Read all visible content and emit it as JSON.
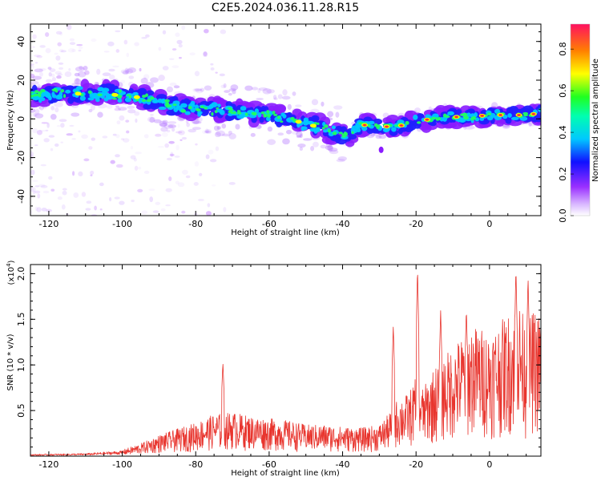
{
  "figure": {
    "title": "C2E5.2024.036.11.28.R15"
  },
  "chart_data": [
    {
      "type": "heatmap",
      "xlabel": "Height of straight line (km)",
      "ylabel": "Frequency (Hz)",
      "xlim": [
        -125,
        14
      ],
      "ylim": [
        -50,
        49
      ],
      "xticks": [
        -120,
        -100,
        -80,
        -60,
        -40,
        -20,
        0
      ],
      "yticks": [
        -40,
        -20,
        0,
        20,
        40
      ],
      "colorbar": {
        "label": "Normalized spectral amplitude",
        "range": [
          0,
          0.92
        ],
        "ticks": [
          0.0,
          0.2,
          0.4,
          0.6,
          0.8
        ],
        "colors": [
          "#ffffff",
          "#c8a0ff",
          "#8000ff",
          "#0000ff",
          "#00e0ff",
          "#00ff60",
          "#ffff00",
          "#ff8000",
          "#ff2050"
        ]
      },
      "ridge": {
        "x": [
          -125,
          -115,
          -105,
          -95,
          -85,
          -75,
          -65,
          -55,
          -45,
          -38,
          -35,
          -30,
          -25,
          -20,
          -15,
          -10,
          -5,
          0,
          5,
          10,
          14
        ],
        "freq": [
          12,
          13,
          13,
          11,
          6,
          5,
          3,
          0,
          -5,
          -9,
          -3,
          -4,
          -4,
          -1,
          0,
          1,
          1,
          2,
          2,
          2,
          3
        ]
      }
    },
    {
      "type": "line",
      "xlabel": "Height of straight line (km)",
      "ylabel": "SNR (10 * v/v)",
      "yscale_label": "(x10",
      "yscale_exp": "4",
      "xlim": [
        -125,
        14
      ],
      "ylim": [
        0,
        2.1
      ],
      "xticks": [
        -120,
        -100,
        -80,
        -60,
        -40,
        -20,
        0
      ],
      "yticks": [
        0.5,
        1.0,
        1.5,
        2.0
      ],
      "series_color": "#e8352e",
      "envelope": {
        "x": [
          -125,
          -110,
          -100,
          -95,
          -90,
          -85,
          -80,
          -75,
          -70,
          -65,
          -60,
          -55,
          -50,
          -45,
          -40,
          -35,
          -30,
          -27,
          -25,
          -22,
          -20,
          -18,
          -15,
          -10,
          -5,
          0,
          5,
          8,
          10,
          12,
          14
        ],
        "y": [
          0.02,
          0.03,
          0.06,
          0.12,
          0.2,
          0.26,
          0.32,
          0.4,
          0.42,
          0.38,
          0.36,
          0.34,
          0.3,
          0.3,
          0.28,
          0.27,
          0.3,
          0.42,
          0.55,
          0.6,
          0.75,
          0.65,
          0.85,
          1.05,
          1.25,
          1.2,
          1.35,
          1.5,
          1.25,
          1.4,
          1.35
        ]
      },
      "peaks": [
        {
          "x": -72.6,
          "y": 1.03
        },
        {
          "x": -26.2,
          "y": 1.43
        },
        {
          "x": -19.6,
          "y": 2.07
        },
        {
          "x": -13.3,
          "y": 1.6
        },
        {
          "x": -6.3,
          "y": 1.62
        },
        {
          "x": 7.2,
          "y": 2.07
        },
        {
          "x": 10.5,
          "y": 1.97
        }
      ]
    }
  ]
}
